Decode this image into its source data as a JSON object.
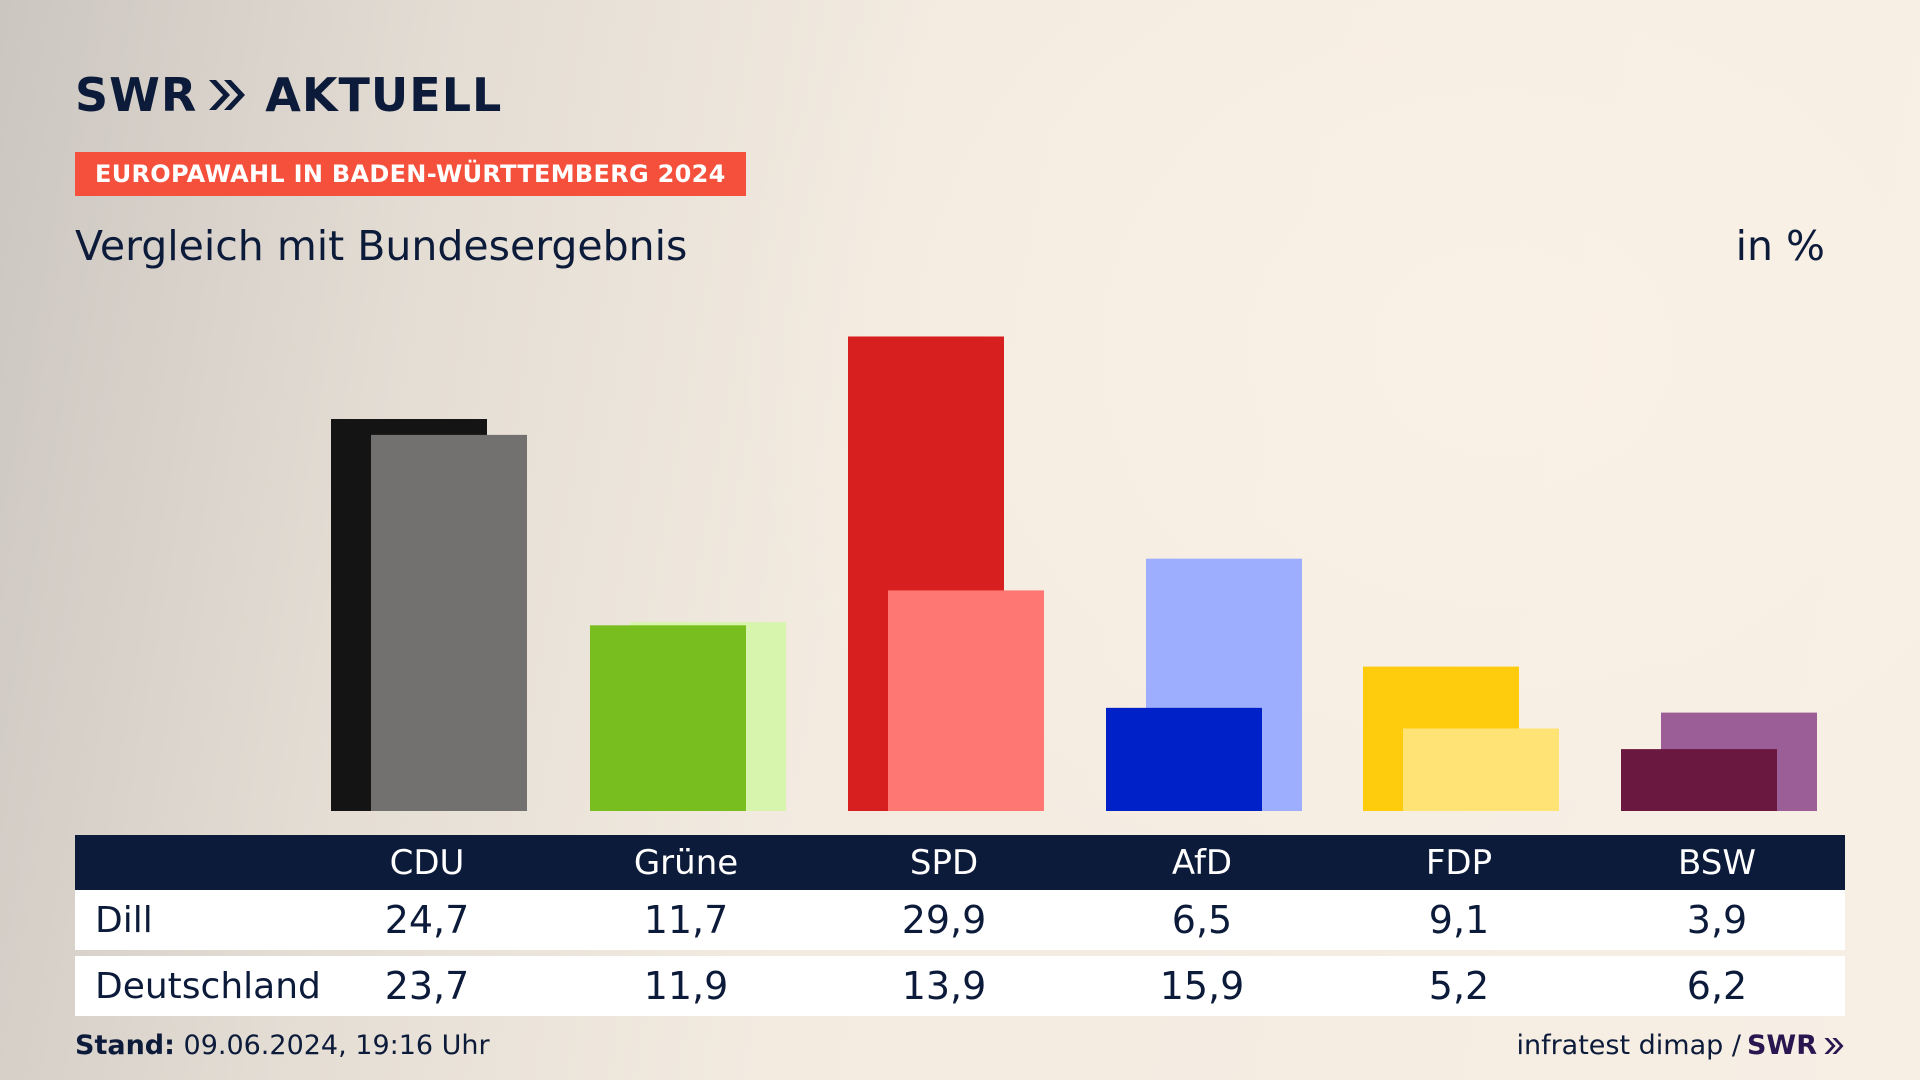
{
  "brand": {
    "logo": "SWR",
    "logo_sub": "AKTUELL",
    "footer_logo": "SWR"
  },
  "header": {
    "tag": "EUROPAWAHL IN BADEN-WÜRTTEMBERG 2024",
    "subtitle": "Vergleich mit Bundesergebnis",
    "unit": "in %"
  },
  "table": {
    "rows": [
      {
        "label": "Dill",
        "values": [
          "24,7",
          "11,7",
          "29,9",
          "6,5",
          "9,1",
          "3,9"
        ]
      },
      {
        "label": "Deutschland",
        "values": [
          "23,7",
          "11,9",
          "13,9",
          "15,9",
          "5,2",
          "6,2"
        ]
      }
    ]
  },
  "footer": {
    "stand_label": "Stand:",
    "stand_value": "09.06.2024, 19:16 Uhr",
    "source": "infratest dimap /"
  },
  "chart_data": {
    "type": "bar",
    "categories": [
      "CDU",
      "Grüne",
      "SPD",
      "AfD",
      "FDP",
      "BSW"
    ],
    "series": [
      {
        "name": "Dill",
        "values": [
          24.7,
          11.7,
          29.9,
          6.5,
          9.1,
          3.9
        ]
      },
      {
        "name": "Deutschland",
        "values": [
          23.7,
          11.9,
          13.9,
          15.9,
          5.2,
          6.2
        ]
      }
    ],
    "colors": {
      "primary": [
        "#141414",
        "#78be1e",
        "#d81f1f",
        "#0020c8",
        "#ffcc0d",
        "#6b1840"
      ],
      "secondary": [
        "#737170",
        "#d7f5ac",
        "#ff7772",
        "#9eaeff",
        "#ffe475",
        "#9b5e96"
      ]
    },
    "ylabel": "in %",
    "ylim": [
      0,
      30
    ],
    "grid": false,
    "legend": "table-below"
  }
}
